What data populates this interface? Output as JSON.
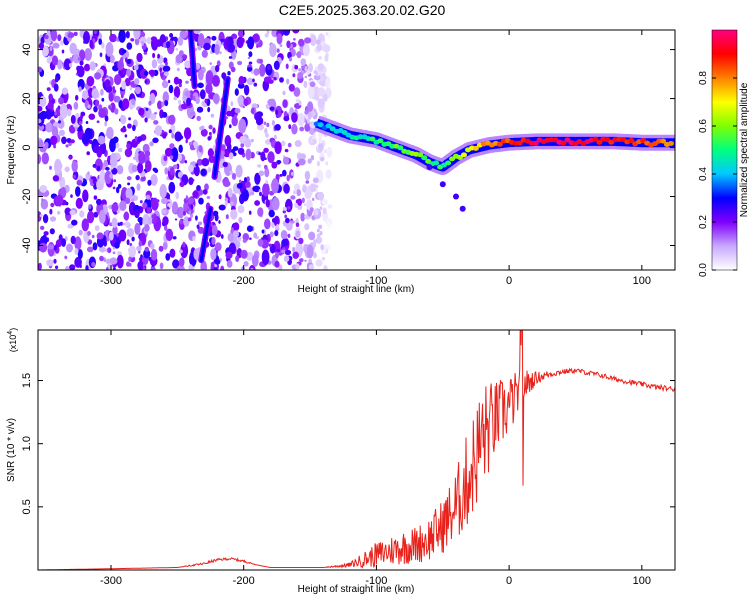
{
  "title": "C2E5.2025.363.20.02.G20",
  "chart_data": [
    {
      "type": "heatmap",
      "xlabel": "Height of straight line (km)",
      "ylabel": "Frequency (Hz)",
      "xlim": [
        -355,
        125
      ],
      "ylim": [
        -50,
        48
      ],
      "x_ticks": [
        -300,
        -200,
        -100,
        0,
        100
      ],
      "x_tick_labels": [
        "-300",
        "-200",
        "-100",
        "0",
        "100"
      ],
      "y_ticks": [
        -40,
        -20,
        0,
        20,
        40
      ],
      "y_tick_labels": [
        "-40",
        "-20",
        "0",
        "20",
        "40"
      ],
      "colorbar": {
        "label": "Normalized spectral amplitude",
        "range": [
          0,
          1
        ],
        "ticks": [
          0.0,
          0.2,
          0.4,
          0.6,
          0.8
        ],
        "tick_labels": [
          "0.0",
          "0.2",
          "0.4",
          "0.6",
          "0.8"
        ],
        "colormap": [
          "#ffffff",
          "#c8a8ff",
          "#8000ff",
          "#0000ff",
          "#00c8ff",
          "#00ff80",
          "#80ff00",
          "#ffff00",
          "#ff8000",
          "#ff0000",
          "#ff0080"
        ]
      },
      "noise_region_x": [
        -355,
        -135
      ],
      "streaks": [
        {
          "x": [
            -240,
            -237
          ],
          "y": [
            48,
            25
          ],
          "amplitude": 0.3
        },
        {
          "x": [
            -225,
            -232
          ],
          "y": [
            -25,
            -46
          ],
          "amplitude": 0.3
        },
        {
          "x": [
            -222,
            -212
          ],
          "y": [
            -12,
            28
          ],
          "amplitude": 0.3
        }
      ],
      "ridge": {
        "x": [
          -145,
          -120,
          -100,
          -90,
          -80,
          -70,
          -60,
          -50,
          -40,
          -30,
          -15,
          0,
          20,
          40,
          60,
          80,
          100,
          125
        ],
        "y": [
          10,
          5,
          3,
          1,
          -1,
          -3,
          -6,
          -8,
          -4,
          -1,
          1,
          2,
          2.5,
          2.5,
          2.5,
          2.5,
          2,
          2
        ],
        "amplitude": [
          0.35,
          0.45,
          0.5,
          0.55,
          0.55,
          0.6,
          0.55,
          0.5,
          0.6,
          0.7,
          0.8,
          0.85,
          0.95,
          0.95,
          0.95,
          0.9,
          0.85,
          0.8
        ]
      },
      "side_feature": {
        "x": [
          -60,
          -50,
          -40,
          -35
        ],
        "y": [
          -8,
          -15,
          -20,
          -25
        ],
        "amplitude": 0.25
      }
    },
    {
      "type": "line",
      "xlabel": "Height of straight line (km)",
      "ylabel": "SNR (10 * v/v)",
      "y_multiplier": "(x10",
      "y_multiplier_exp": "4",
      "xlim": [
        -355,
        125
      ],
      "ylim": [
        0,
        1.9
      ],
      "x_ticks": [
        -300,
        -200,
        -100,
        0,
        100
      ],
      "x_tick_labels": [
        "-300",
        "-200",
        "-100",
        "0",
        "100"
      ],
      "y_ticks": [
        0.5,
        1.0,
        1.5
      ],
      "y_tick_labels": [
        "0.5",
        "1.0",
        "1.5"
      ],
      "series": [
        {
          "name": "SNR",
          "color": "#e8221b",
          "x": [
            -355,
            -300,
            -250,
            -230,
            -220,
            -210,
            -200,
            -190,
            -180,
            -160,
            -140,
            -120,
            -110,
            -100,
            -90,
            -80,
            -70,
            -60,
            -50,
            -40,
            -30,
            -20,
            -10,
            0,
            10,
            20,
            30,
            40,
            50,
            60,
            70,
            80,
            90,
            100,
            110,
            125
          ],
          "y": [
            0.0,
            0.01,
            0.02,
            0.05,
            0.08,
            0.09,
            0.07,
            0.04,
            0.02,
            0.02,
            0.02,
            0.04,
            0.08,
            0.12,
            0.15,
            0.18,
            0.2,
            0.25,
            0.35,
            0.5,
            0.75,
            1.05,
            1.2,
            1.3,
            1.45,
            1.52,
            1.55,
            1.57,
            1.58,
            1.56,
            1.54,
            1.51,
            1.49,
            1.47,
            1.45,
            1.43
          ],
          "noise_amplitude": [
            0.0,
            0.0,
            0.0,
            0.01,
            0.01,
            0.01,
            0.01,
            0.0,
            0.0,
            0.0,
            0.0,
            0.02,
            0.06,
            0.1,
            0.12,
            0.14,
            0.15,
            0.18,
            0.22,
            0.3,
            0.4,
            0.45,
            0.3,
            0.25,
            0.15,
            0.05,
            0.03,
            0.02,
            0.02,
            0.02,
            0.02,
            0.02,
            0.02,
            0.02,
            0.02,
            0.02
          ]
        }
      ]
    }
  ]
}
